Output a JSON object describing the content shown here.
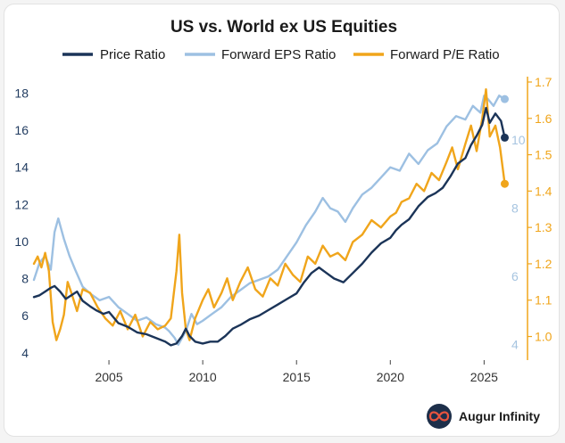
{
  "chart_data": {
    "type": "line",
    "title": "US vs. World ex US Equities",
    "legend_position": "top",
    "x_ticks": [
      2005,
      2010,
      2015,
      2020,
      2025
    ],
    "xlim": [
      2001.0,
      2026.6
    ],
    "left_axis": {
      "ylim": [
        3.7,
        18.6
      ],
      "ticks": [
        4,
        6,
        8,
        10,
        12,
        14,
        16,
        18
      ],
      "color": "#1f3a5f"
    },
    "middle_axis": {
      "ylim": [
        3.6,
        11.7
      ],
      "ticks": [
        4,
        6,
        8,
        10
      ],
      "color": "#a6c4e0"
    },
    "right_axis": {
      "ylim": [
        0.94,
        1.7
      ],
      "ticks": [
        1.0,
        1.1,
        1.2,
        1.3,
        1.4,
        1.5,
        1.6,
        1.7
      ],
      "tick_labels": [
        "1.0",
        "1.1",
        "1.2",
        "1.3",
        "1.4",
        "1.5",
        "1.6",
        "1.7"
      ],
      "color": "#f0a51b"
    },
    "series": [
      {
        "name": "Price Ratio",
        "axis": "left",
        "color": "#1b3458",
        "end_marker": true,
        "x": [
          2001.0,
          2001.3,
          2001.6,
          2001.9,
          2002.1,
          2002.4,
          2002.7,
          2003.0,
          2003.3,
          2003.6,
          2004.0,
          2004.3,
          2004.7,
          2005.0,
          2005.5,
          2006.0,
          2006.5,
          2007.0,
          2007.5,
          2008.0,
          2008.3,
          2008.6,
          2008.9,
          2009.1,
          2009.3,
          2009.6,
          2010.0,
          2010.4,
          2010.8,
          2011.2,
          2011.6,
          2012.0,
          2012.5,
          2013.0,
          2013.5,
          2014.0,
          2014.5,
          2015.0,
          2015.4,
          2015.8,
          2016.2,
          2016.6,
          2017.0,
          2017.5,
          2018.0,
          2018.5,
          2019.0,
          2019.5,
          2020.0,
          2020.3,
          2020.6,
          2021.0,
          2021.5,
          2022.0,
          2022.4,
          2022.8,
          2023.2,
          2023.6,
          2024.0,
          2024.3,
          2024.6,
          2024.9,
          2025.1,
          2025.3,
          2025.6,
          2025.9,
          2026.1
        ],
        "values": [
          7.0,
          7.1,
          7.3,
          7.5,
          7.6,
          7.3,
          6.9,
          7.1,
          7.3,
          6.8,
          6.5,
          6.3,
          6.1,
          6.2,
          5.6,
          5.4,
          5.1,
          5.0,
          4.8,
          4.6,
          4.4,
          4.5,
          4.9,
          5.3,
          4.9,
          4.6,
          4.5,
          4.6,
          4.6,
          4.9,
          5.3,
          5.5,
          5.8,
          6.0,
          6.3,
          6.6,
          6.9,
          7.2,
          7.8,
          8.3,
          8.6,
          8.3,
          8.0,
          7.8,
          8.3,
          8.8,
          9.4,
          9.9,
          10.2,
          10.6,
          10.9,
          11.2,
          11.9,
          12.4,
          12.6,
          12.9,
          13.5,
          14.2,
          14.5,
          15.2,
          15.7,
          16.3,
          17.2,
          16.4,
          16.9,
          16.5,
          15.6
        ]
      },
      {
        "name": "Forward EPS Ratio",
        "axis": "middle",
        "color": "#9dc0e2",
        "end_marker": true,
        "x": [
          2001.0,
          2001.3,
          2001.6,
          2001.9,
          2002.1,
          2002.3,
          2002.6,
          2002.9,
          2003.2,
          2003.6,
          2004.0,
          2004.5,
          2005.0,
          2005.5,
          2006.0,
          2006.5,
          2007.0,
          2007.5,
          2008.0,
          2008.2,
          2008.5,
          2008.7,
          2008.9,
          2009.1,
          2009.4,
          2009.7,
          2010.0,
          2010.5,
          2011.0,
          2011.5,
          2012.0,
          2012.5,
          2013.0,
          2013.5,
          2014.0,
          2014.5,
          2015.0,
          2015.5,
          2016.0,
          2016.4,
          2016.8,
          2017.2,
          2017.6,
          2018.0,
          2018.5,
          2019.0,
          2019.5,
          2020.0,
          2020.5,
          2021.0,
          2021.5,
          2022.0,
          2022.5,
          2023.0,
          2023.5,
          2024.0,
          2024.4,
          2024.8,
          2025.0,
          2025.2,
          2025.5,
          2025.8,
          2026.1
        ],
        "values": [
          5.9,
          6.4,
          6.6,
          6.2,
          7.3,
          7.7,
          7.1,
          6.6,
          6.2,
          5.7,
          5.5,
          5.3,
          5.4,
          5.1,
          4.9,
          4.7,
          4.8,
          4.6,
          4.5,
          4.4,
          4.2,
          4.0,
          4.2,
          4.4,
          4.9,
          4.6,
          4.7,
          4.9,
          5.1,
          5.4,
          5.6,
          5.8,
          5.9,
          6.0,
          6.2,
          6.6,
          7.0,
          7.5,
          7.9,
          8.3,
          8.0,
          7.9,
          7.6,
          8.0,
          8.4,
          8.6,
          8.9,
          9.2,
          9.1,
          9.6,
          9.3,
          9.7,
          9.9,
          10.4,
          10.7,
          10.6,
          11.0,
          10.8,
          11.3,
          11.2,
          11.0,
          11.3,
          11.2
        ]
      },
      {
        "name": "Forward P/E Ratio",
        "axis": "right",
        "color": "#f0a51b",
        "end_marker": true,
        "x": [
          2001.0,
          2001.2,
          2001.4,
          2001.6,
          2001.8,
          2002.0,
          2002.2,
          2002.4,
          2002.6,
          2002.8,
          2003.0,
          2003.3,
          2003.6,
          2004.0,
          2004.4,
          2004.8,
          2005.2,
          2005.6,
          2006.0,
          2006.4,
          2006.8,
          2007.2,
          2007.6,
          2008.0,
          2008.3,
          2008.6,
          2008.75,
          2008.9,
          2009.1,
          2009.3,
          2009.6,
          2010.0,
          2010.3,
          2010.6,
          2011.0,
          2011.3,
          2011.6,
          2012.0,
          2012.4,
          2012.8,
          2013.2,
          2013.6,
          2014.0,
          2014.4,
          2014.8,
          2015.2,
          2015.6,
          2016.0,
          2016.4,
          2016.8,
          2017.2,
          2017.6,
          2018.0,
          2018.5,
          2019.0,
          2019.5,
          2020.0,
          2020.3,
          2020.6,
          2021.0,
          2021.4,
          2021.8,
          2022.2,
          2022.6,
          2023.0,
          2023.3,
          2023.6,
          2024.0,
          2024.3,
          2024.6,
          2024.9,
          2025.1,
          2025.3,
          2025.6,
          2025.85,
          2026.1
        ],
        "values": [
          1.2,
          1.22,
          1.19,
          1.23,
          1.18,
          1.04,
          0.99,
          1.02,
          1.06,
          1.15,
          1.12,
          1.07,
          1.13,
          1.12,
          1.08,
          1.05,
          1.03,
          1.07,
          1.02,
          1.06,
          1.0,
          1.04,
          1.02,
          1.03,
          1.05,
          1.18,
          1.28,
          1.12,
          1.02,
          0.99,
          1.05,
          1.1,
          1.13,
          1.08,
          1.12,
          1.16,
          1.1,
          1.15,
          1.19,
          1.13,
          1.11,
          1.16,
          1.14,
          1.2,
          1.17,
          1.15,
          1.22,
          1.2,
          1.25,
          1.22,
          1.23,
          1.21,
          1.26,
          1.28,
          1.32,
          1.3,
          1.33,
          1.34,
          1.37,
          1.38,
          1.42,
          1.4,
          1.45,
          1.43,
          1.48,
          1.52,
          1.46,
          1.53,
          1.58,
          1.51,
          1.6,
          1.68,
          1.55,
          1.58,
          1.52,
          1.42
        ]
      }
    ]
  },
  "brand": {
    "name": "Augur Infinity",
    "icon": "infinity-icon"
  }
}
